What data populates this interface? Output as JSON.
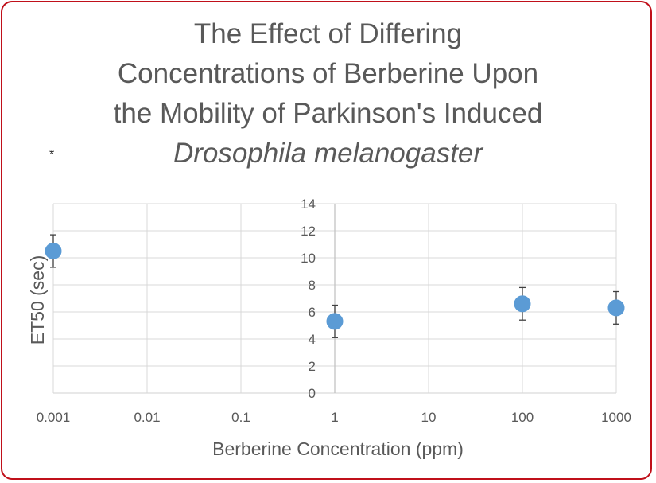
{
  "chart_data": {
    "type": "scatter",
    "title_lines": [
      "The Effect of Differing",
      "Concentrations of Berberine Upon",
      "the Mobility of Parkinson's Induced"
    ],
    "title_italic_line": "Drosophila melanogaster",
    "annotation": "*",
    "xlabel": "Berberine Concentration (ppm)",
    "ylabel": "ET50 (sec)",
    "x_scale": "log",
    "x_ticks": [
      "0.001",
      "0.01",
      "0.1",
      "1",
      "10",
      "100",
      "1000"
    ],
    "x_tick_values": [
      0.001,
      0.01,
      0.1,
      1,
      10,
      100,
      1000
    ],
    "y_ticks": [
      "0",
      "2",
      "4",
      "6",
      "8",
      "10",
      "12",
      "14"
    ],
    "ylim": [
      0,
      14
    ],
    "grid": true,
    "marker_color": "#5b9bd5",
    "points": [
      {
        "x": 0.001,
        "y": 10.5,
        "error": 1.2
      },
      {
        "x": 1,
        "y": 5.3,
        "error": 1.2
      },
      {
        "x": 100,
        "y": 6.6,
        "error": 1.2
      },
      {
        "x": 1000,
        "y": 6.3,
        "error": 1.2
      }
    ]
  }
}
